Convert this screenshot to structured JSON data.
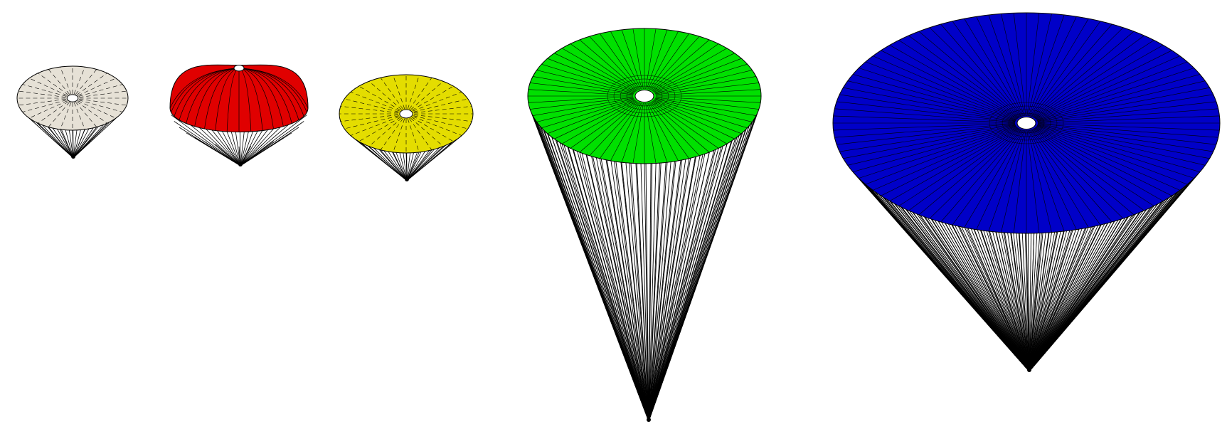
{
  "figure": {
    "background": "#ffffff",
    "line_color": "#000000",
    "vent_color": "#ffffff",
    "parachutes": [
      {
        "canopy_color": "#e6e1d6",
        "shape": "flat",
        "gores": 28,
        "suspension_lines": 28
      },
      {
        "canopy_color": "#e00000",
        "shape": "domed",
        "gores": 36,
        "suspension_lines": 36
      },
      {
        "canopy_color": "#e4dd00",
        "shape": "flat",
        "gores": 32,
        "suspension_lines": 32
      },
      {
        "canopy_color": "#00e000",
        "shape": "flat",
        "gores": 64,
        "suspension_lines": 96
      },
      {
        "canopy_color": "#0000c8",
        "shape": "flat",
        "gores": 96,
        "suspension_lines": 160
      }
    ]
  }
}
